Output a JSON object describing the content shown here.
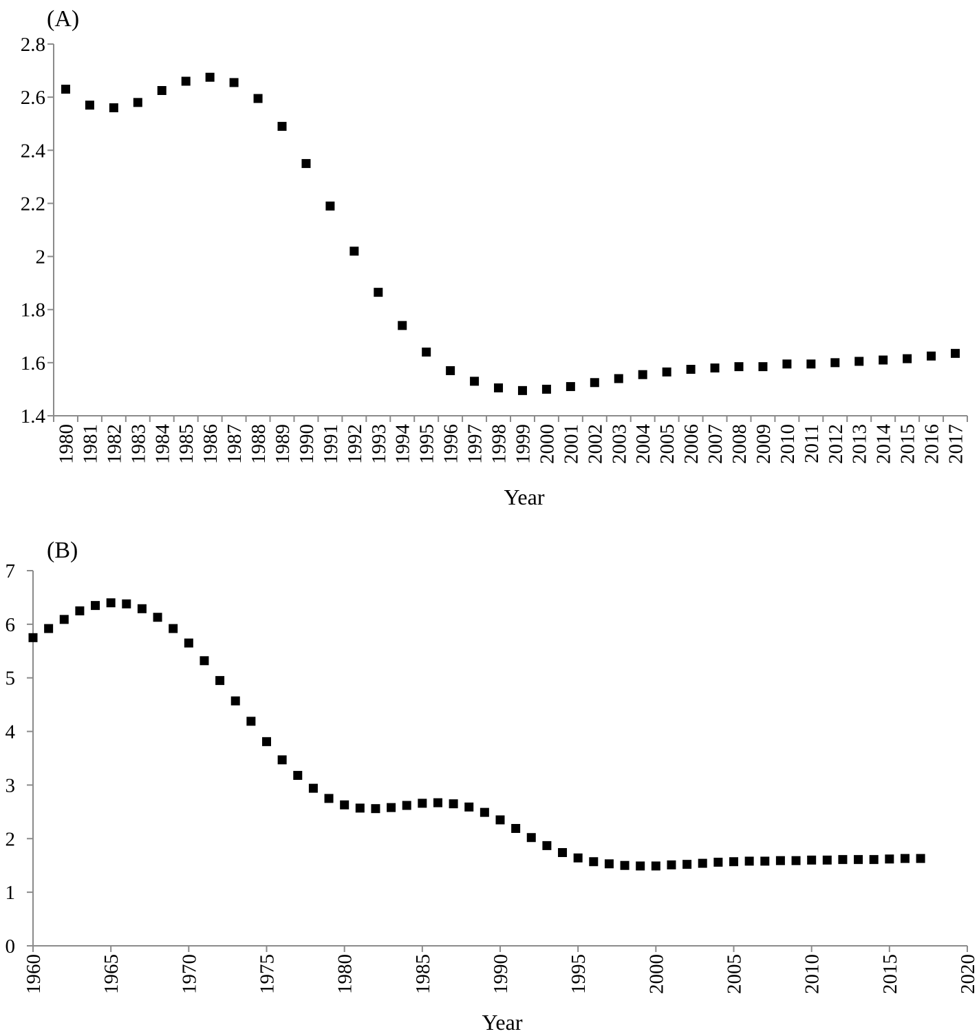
{
  "chart_data": [
    {
      "type": "scatter",
      "panel_label": "(A)",
      "xlabel": "Year",
      "ylabel": "",
      "x_axis_type": "category",
      "categories": [
        "1980",
        "1981",
        "1982",
        "1983",
        "1984",
        "1985",
        "1986",
        "1987",
        "1988",
        "1989",
        "1990",
        "1991",
        "1992",
        "1993",
        "1994",
        "1995",
        "1996",
        "1997",
        "1998",
        "1999",
        "2000",
        "2001",
        "2002",
        "2003",
        "2004",
        "2005",
        "2006",
        "2007",
        "2008",
        "2009",
        "2010",
        "2011",
        "2012",
        "2013",
        "2014",
        "2015",
        "2016",
        "2017"
      ],
      "values": [
        2.63,
        2.57,
        2.56,
        2.58,
        2.625,
        2.66,
        2.675,
        2.655,
        2.595,
        2.49,
        2.35,
        2.19,
        2.02,
        1.865,
        1.74,
        1.64,
        1.57,
        1.53,
        1.505,
        1.495,
        1.5,
        1.51,
        1.525,
        1.54,
        1.555,
        1.565,
        1.575,
        1.58,
        1.585,
        1.585,
        1.595,
        1.595,
        1.6,
        1.605,
        1.61,
        1.615,
        1.625,
        1.635
      ],
      "ylim": [
        1.4,
        2.8
      ],
      "yticks": [
        1.4,
        1.6,
        1.8,
        2.0,
        2.2,
        2.4,
        2.6,
        2.8
      ],
      "ytick_labels": [
        "1.4",
        "1.6",
        "1.8",
        "2",
        "2.2",
        "2.4",
        "2.6",
        "2.8"
      ],
      "marker": "square",
      "marker_color": "#000000",
      "grid": false,
      "legend": "none"
    },
    {
      "type": "scatter",
      "panel_label": "(B)",
      "xlabel": "Year",
      "ylabel": "",
      "x_axis_type": "numeric",
      "x": [
        1960,
        1961,
        1962,
        1963,
        1964,
        1965,
        1966,
        1967,
        1968,
        1969,
        1970,
        1971,
        1972,
        1973,
        1974,
        1975,
        1976,
        1977,
        1978,
        1979,
        1980,
        1981,
        1982,
        1983,
        1984,
        1985,
        1986,
        1987,
        1988,
        1989,
        1990,
        1991,
        1992,
        1993,
        1994,
        1995,
        1996,
        1997,
        1998,
        1999,
        2000,
        2001,
        2002,
        2003,
        2004,
        2005,
        2006,
        2007,
        2008,
        2009,
        2010,
        2011,
        2012,
        2013,
        2014,
        2015,
        2016,
        2017
      ],
      "values": [
        5.75,
        5.92,
        6.09,
        6.25,
        6.35,
        6.4,
        6.38,
        6.29,
        6.13,
        5.92,
        5.65,
        5.32,
        4.95,
        4.57,
        4.19,
        3.81,
        3.47,
        3.18,
        2.94,
        2.75,
        2.63,
        2.57,
        2.56,
        2.58,
        2.62,
        2.66,
        2.67,
        2.65,
        2.59,
        2.49,
        2.35,
        2.19,
        2.02,
        1.87,
        1.74,
        1.64,
        1.57,
        1.53,
        1.5,
        1.49,
        1.49,
        1.51,
        1.52,
        1.54,
        1.56,
        1.57,
        1.58,
        1.58,
        1.59,
        1.59,
        1.6,
        1.6,
        1.61,
        1.61,
        1.61,
        1.62,
        1.63,
        1.63
      ],
      "xlim": [
        1960,
        2020
      ],
      "xticks": [
        1960,
        1965,
        1970,
        1975,
        1980,
        1985,
        1990,
        1995,
        2000,
        2005,
        2010,
        2015,
        2020
      ],
      "xtick_labels": [
        "1960",
        "1965",
        "1970",
        "1975",
        "1980",
        "1985",
        "1990",
        "1995",
        "2000",
        "2005",
        "2010",
        "2015",
        "2020"
      ],
      "ylim": [
        0,
        7
      ],
      "yticks": [
        0,
        1,
        2,
        3,
        4,
        5,
        6,
        7
      ],
      "ytick_labels": [
        "0",
        "1",
        "2",
        "3",
        "4",
        "5",
        "6",
        "7"
      ],
      "marker": "square",
      "marker_color": "#000000",
      "grid": false,
      "legend": "none"
    }
  ]
}
